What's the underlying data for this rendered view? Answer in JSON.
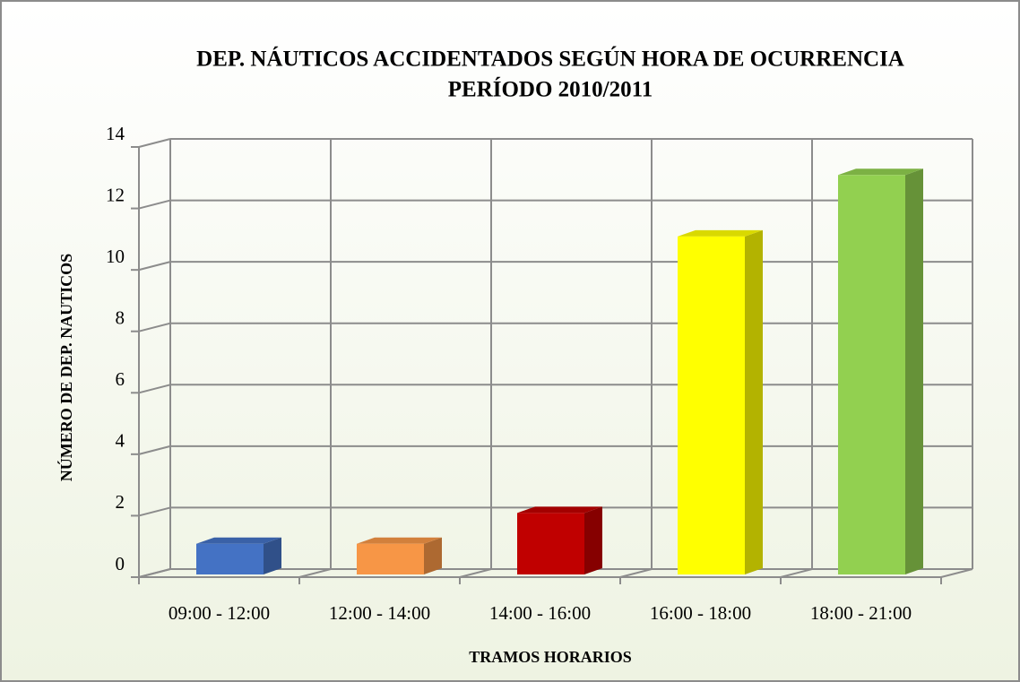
{
  "chart_data": {
    "type": "bar3d",
    "title": [
      "DEP. NÁUTICOS ACCIDENTADOS SEGÚN HORA DE OCURRENCIA",
      "PERÍODO 2010/2011"
    ],
    "x_label": "TRAMOS HORARIOS",
    "y_label": "NÚMERO DE DEP. NAUTICOS",
    "categories": [
      "09:00 - 12:00",
      "12:00 - 14:00",
      "14:00 - 16:00",
      "16:00 - 18:00",
      "18:00 - 21:00"
    ],
    "values": [
      1,
      1,
      2,
      11,
      13
    ],
    "colors": [
      "#4472c4",
      "#f79646",
      "#c00000",
      "#ffff00",
      "#92d050"
    ],
    "ylim": [
      0,
      14
    ],
    "yticks": [
      0,
      2,
      4,
      6,
      8,
      10,
      12,
      14
    ],
    "grid": true
  }
}
